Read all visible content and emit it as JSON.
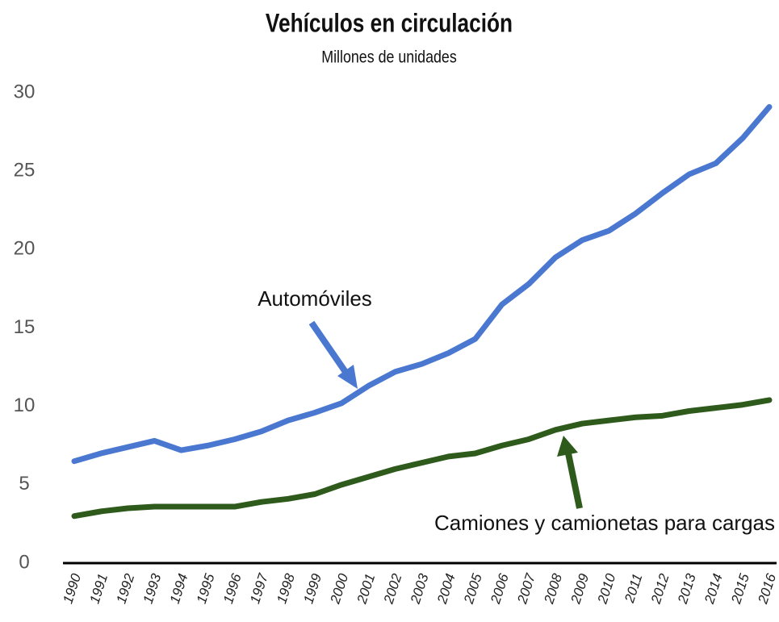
{
  "chart_data": {
    "type": "line",
    "title": "Vehículos en circulación",
    "subtitle": "Millones de unidades",
    "x": [
      1990,
      1991,
      1992,
      1993,
      1994,
      1995,
      1996,
      1997,
      1998,
      1999,
      2000,
      2001,
      2002,
      2003,
      2004,
      2005,
      2006,
      2007,
      2008,
      2009,
      2010,
      2011,
      2012,
      2013,
      2014,
      2015,
      2016
    ],
    "series": [
      {
        "name": "Automóviles",
        "color": "#4a78d0",
        "values": [
          6.5,
          7.0,
          7.4,
          7.8,
          7.2,
          7.5,
          7.9,
          8.4,
          9.1,
          9.6,
          10.2,
          11.3,
          12.2,
          12.7,
          13.4,
          14.3,
          16.5,
          17.8,
          19.5,
          20.6,
          21.2,
          22.3,
          23.6,
          24.8,
          25.5,
          27.1,
          29.1
        ]
      },
      {
        "name": "Camiones y camionetas para cargas",
        "color": "#2e5a1c",
        "values": [
          3.0,
          3.3,
          3.5,
          3.6,
          3.6,
          3.6,
          3.6,
          3.9,
          4.1,
          4.4,
          5.0,
          5.5,
          6.0,
          6.4,
          6.8,
          7.0,
          7.5,
          7.9,
          8.5,
          8.9,
          9.1,
          9.3,
          9.4,
          9.7,
          9.9,
          10.1,
          10.4
        ]
      }
    ],
    "xlim": [
      1990,
      2016
    ],
    "xticks": [
      1990,
      1991,
      1992,
      1993,
      1994,
      1995,
      1996,
      1997,
      1998,
      1999,
      2000,
      2001,
      2002,
      2003,
      2004,
      2005,
      2006,
      2007,
      2008,
      2009,
      2010,
      2011,
      2012,
      2013,
      2014,
      2015,
      2016
    ],
    "ylim": [
      0,
      30
    ],
    "yticks": [
      0,
      5,
      10,
      15,
      20,
      25,
      30
    ],
    "grid": false
  }
}
